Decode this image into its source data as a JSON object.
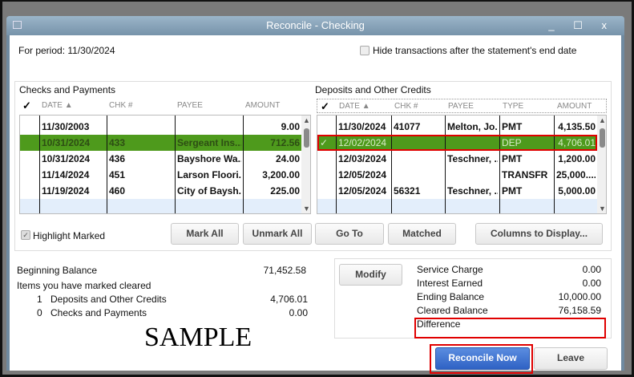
{
  "window": {
    "title": "Reconcile - Checking",
    "controls": "_ ☐ x"
  },
  "period": "For period: 11/30/2024",
  "hide_label": "Hide transactions after the statement's end date",
  "checks": {
    "title": "Checks and Payments",
    "headers": [
      "✓",
      "DATE ▲",
      "CHK #",
      "PAYEE",
      "AMOUNT"
    ],
    "rows": [
      {
        "check": "",
        "date": "11/30/2003",
        "chk": "",
        "payee": "",
        "amount": "9.00"
      },
      {
        "check": "",
        "date": "10/31/2024",
        "chk": "433",
        "payee": "Sergeant Ins...",
        "amount": "712.56"
      },
      {
        "check": "",
        "date": "10/31/2024",
        "chk": "436",
        "payee": "Bayshore Wa...",
        "amount": "24.00"
      },
      {
        "check": "",
        "date": "11/14/2024",
        "chk": "451",
        "payee": "Larson Floori...",
        "amount": "3,200.00"
      },
      {
        "check": "",
        "date": "11/19/2024",
        "chk": "460",
        "payee": "City of Baysh...",
        "amount": "225.00"
      }
    ]
  },
  "deposits": {
    "title": "Deposits and Other Credits",
    "headers": [
      "✓",
      "DATE ▲",
      "CHK #",
      "PAYEE",
      "TYPE",
      "AMOUNT"
    ],
    "rows": [
      {
        "check": "",
        "date": "11/30/2024",
        "chk": "41077",
        "payee": "Melton, Jo...",
        "type": "PMT",
        "amount": "4,135.50"
      },
      {
        "check": "✓",
        "date": "12/02/2024",
        "chk": "",
        "payee": "",
        "type": "DEP",
        "amount": "4,706.01"
      },
      {
        "check": "",
        "date": "12/03/2024",
        "chk": "",
        "payee": "Teschner, ...",
        "type": "PMT",
        "amount": "1,200.00"
      },
      {
        "check": "",
        "date": "12/05/2024",
        "chk": "",
        "payee": "",
        "type": "TRANSFR",
        "amount": "25,000...."
      },
      {
        "check": "",
        "date": "12/05/2024",
        "chk": "56321",
        "payee": "Teschner, ...",
        "type": "PMT",
        "amount": "5,000.00"
      }
    ]
  },
  "highlight_label": "Highlight Marked",
  "highlight_checked": true,
  "buttons": {
    "mark_all": "Mark All",
    "unmark_all": "Unmark All",
    "go_to": "Go To",
    "matched": "Matched",
    "columns": "Columns to Display...",
    "modify": "Modify",
    "reconcile": "Reconcile Now",
    "leave": "Leave"
  },
  "summary": {
    "beginning_label": "Beginning Balance",
    "beginning": "71,452.58",
    "items_label": "Items you have marked cleared",
    "dep_count": "1",
    "dep_label": "Deposits and Other Credits",
    "dep_amount": "4,706.01",
    "chk_count": "0",
    "chk_label": "Checks and Payments",
    "chk_amount": "0.00"
  },
  "balances": {
    "service_label": "Service Charge",
    "service": "0.00",
    "interest_label": "Interest Earned",
    "interest": "0.00",
    "ending_label": "Ending Balance",
    "ending": "10,000.00",
    "cleared_label": "Cleared Balance",
    "cleared": "76,158.59",
    "difference_label": "Difference"
  },
  "watermark": "SAMPLE",
  "colors": {
    "selected_row": "#4e9a1c",
    "highlight_box": "#e00000",
    "primary_button": "#3a6fd0"
  }
}
